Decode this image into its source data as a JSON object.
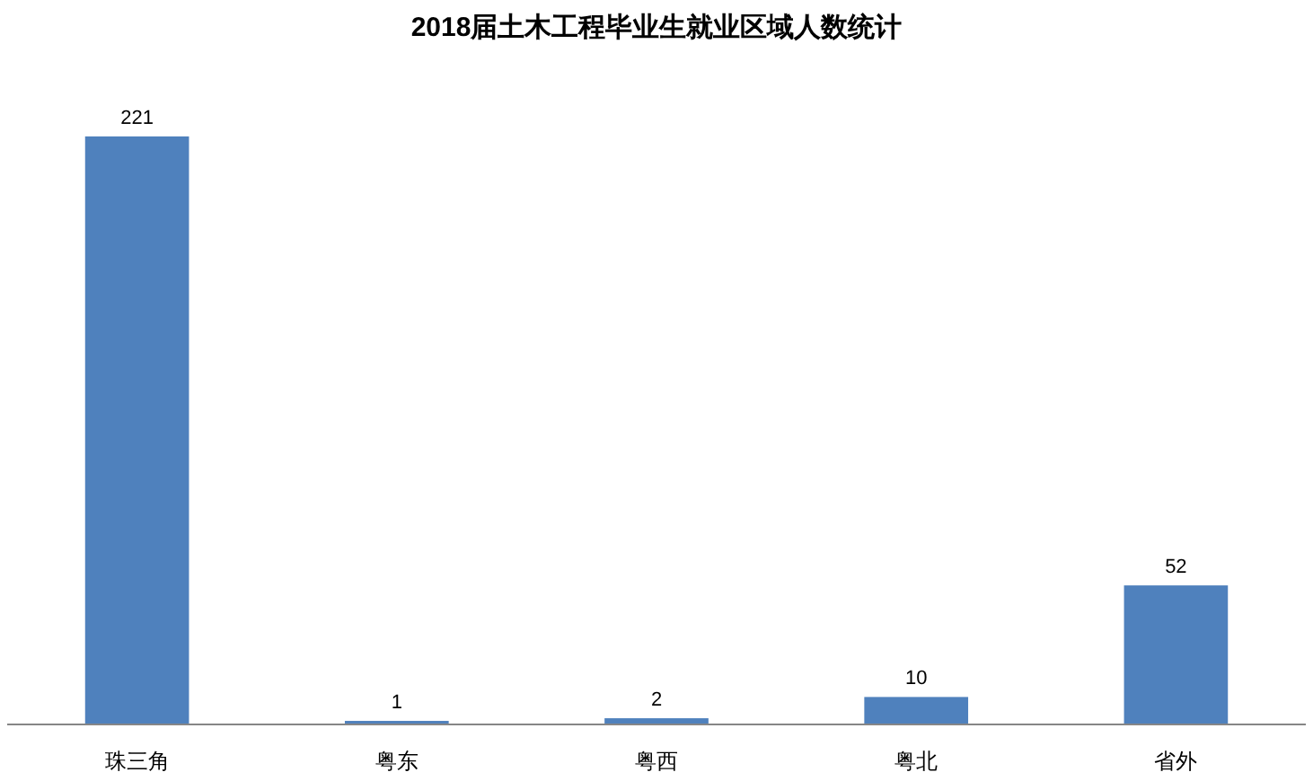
{
  "chart_data": {
    "type": "bar",
    "title": "2018届土木工程毕业生就业区域人数统计",
    "categories": [
      "珠三角",
      "粤东",
      "粤西",
      "粤北",
      "省外"
    ],
    "values": [
      221,
      1,
      2,
      10,
      52
    ],
    "color": "#4f81bd",
    "data_labels": true
  }
}
